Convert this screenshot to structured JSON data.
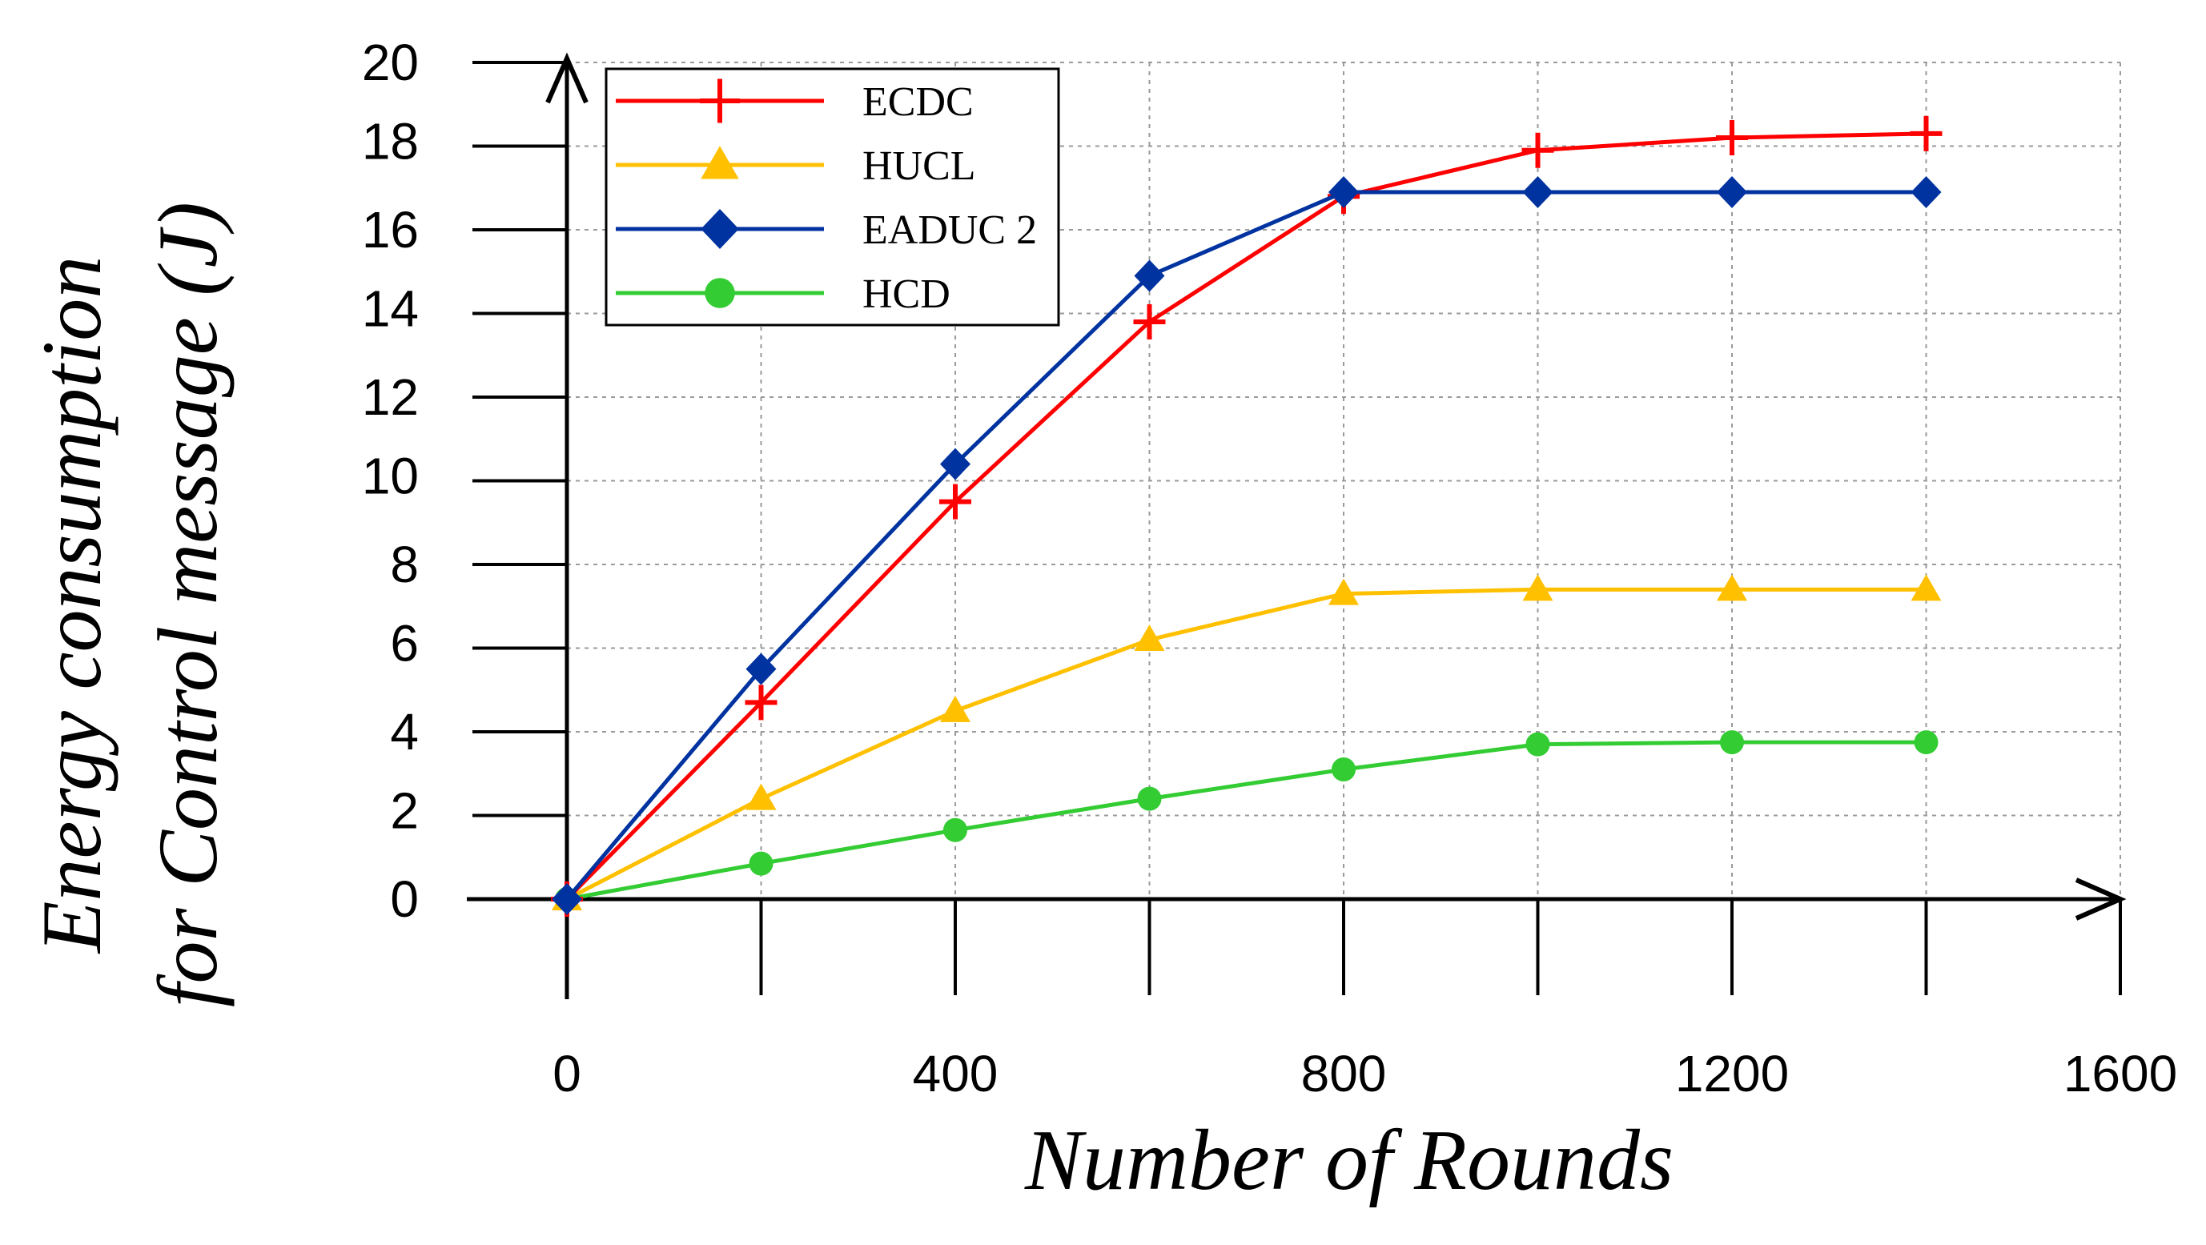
{
  "chart_data": {
    "type": "line",
    "title": "",
    "xlabel": "Number of Rounds",
    "ylabel_line1": "Energy consumption",
    "ylabel_line2": "for Control message (J)",
    "xlim": [
      0,
      1600
    ],
    "ylim": [
      0,
      20
    ],
    "x_major_ticks": [
      0,
      400,
      800,
      1200,
      1600
    ],
    "x_minor_ticks": [
      200,
      600,
      1000,
      1400
    ],
    "x_tick_labels": [
      "0",
      "400",
      "800",
      "1200",
      "1600"
    ],
    "y_ticks": [
      0,
      2,
      4,
      6,
      8,
      10,
      12,
      14,
      16,
      18,
      20
    ],
    "y_tick_labels": [
      "0",
      "2",
      "4",
      "6",
      "8",
      "10",
      "12",
      "14",
      "16",
      "18",
      "20"
    ],
    "grid": true,
    "legend_position": "top-left",
    "x": [
      0,
      200,
      400,
      600,
      800,
      1000,
      1200,
      1400
    ],
    "series": [
      {
        "name": "ECDC",
        "color": "#ff0000",
        "marker": "plus",
        "values": [
          0,
          4.7,
          9.5,
          13.8,
          16.8,
          17.9,
          18.2,
          18.3
        ]
      },
      {
        "name": "HUCL",
        "color": "#ffc000",
        "marker": "triangle",
        "values": [
          0,
          2.4,
          4.5,
          6.2,
          7.3,
          7.4,
          7.4,
          7.4
        ]
      },
      {
        "name": "EADUC 2",
        "color": "#0033a0",
        "marker": "diamond",
        "values": [
          0,
          5.5,
          10.4,
          14.9,
          16.9,
          16.9,
          16.9,
          16.9
        ]
      },
      {
        "name": "HCD",
        "color": "#33cc33",
        "marker": "circle",
        "values": [
          0,
          0.85,
          1.65,
          2.4,
          3.1,
          3.7,
          3.75,
          3.75
        ]
      }
    ]
  }
}
